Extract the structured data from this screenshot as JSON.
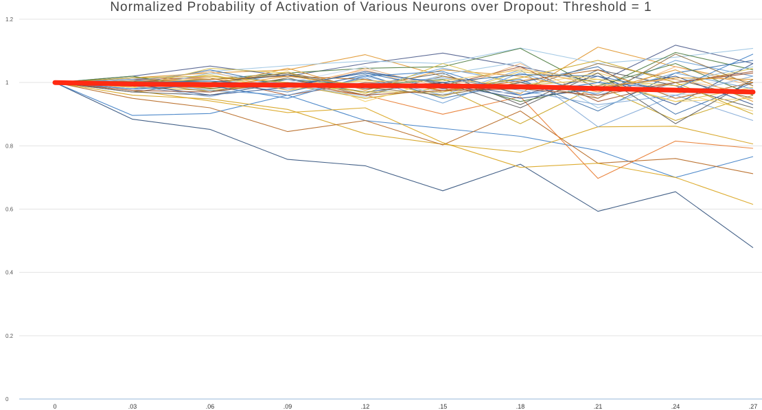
{
  "chart_data": {
    "type": "line",
    "title": "Normalized Probability of Activation of Various Neurons over Dropout: Threshold = 1",
    "xlabel": "",
    "ylabel": "",
    "ylim": [
      0,
      1.2
    ],
    "yticks": [
      "0",
      "0.2",
      "0.4",
      "0.6",
      "0.8",
      "1",
      "1.2"
    ],
    "categories": [
      "0",
      ".03",
      ".06",
      ".09",
      ".12",
      ".15",
      ".18",
      ".21",
      ".24",
      ".27"
    ],
    "grid": true,
    "legend": "none",
    "colors": {
      "average": "#ff2a12",
      "palette": [
        "#3b6fa8",
        "#e0952a",
        "#9bc4e2",
        "#c8a21c",
        "#5a5a5a",
        "#f0b47a",
        "#2f4f8a",
        "#b5651d",
        "#7fa7d6",
        "#d9c04a",
        "#8c6d3f",
        "#6a9fd4",
        "#f5d06b",
        "#4a7a3d",
        "#c9d9ee",
        "#a0522d"
      ]
    },
    "series": [
      {
        "values": [
          1,
          0.884,
          0.852,
          0.757,
          0.737,
          0.658,
          0.742,
          0.593,
          0.655,
          0.478
        ],
        "color": "#2f4f7a"
      },
      {
        "values": [
          1,
          0.896,
          0.902,
          0.96,
          0.88,
          0.855,
          0.83,
          0.785,
          0.7,
          0.766
        ],
        "color": "#3b7cc4"
      },
      {
        "values": [
          1,
          0.96,
          0.948,
          0.915,
          0.838,
          0.805,
          0.78,
          0.86,
          0.862,
          0.806
        ],
        "color": "#d4a017"
      },
      {
        "values": [
          1,
          0.95,
          0.92,
          0.845,
          0.88,
          0.803,
          0.91,
          0.745,
          0.76,
          0.712
        ],
        "color": "#b5651d"
      },
      {
        "values": [
          1,
          0.975,
          0.942,
          0.905,
          0.92,
          0.81,
          0.732,
          0.745,
          0.7,
          0.615
        ],
        "color": "#d9a31a"
      },
      {
        "values": [
          1,
          0.99,
          0.982,
          0.99,
          0.96,
          0.9,
          0.955,
          0.697,
          0.815,
          0.792
        ],
        "color": "#e8782a"
      },
      {
        "values": [
          1,
          1.015,
          1.03,
          1.04,
          1.088,
          1.02,
          0.965,
          1.112,
          1.05,
          1.0
        ],
        "color": "#e0952a"
      },
      {
        "values": [
          1,
          1.02,
          1.052,
          1.02,
          1.06,
          1.093,
          1.05,
          1.0,
          1.118,
          1.06
        ],
        "color": "#4a5a8a"
      },
      {
        "values": [
          1,
          1.005,
          1.035,
          1.053,
          1.068,
          1.06,
          1.109,
          1.06,
          1.08,
          1.108
        ],
        "color": "#9bc4e2"
      },
      {
        "values": [
          1,
          0.995,
          1.01,
          1.03,
          1.045,
          1.05,
          1.108,
          0.98,
          1.095,
          1.04
        ],
        "color": "#4a7a3d"
      },
      {
        "values": [
          1,
          0.985,
          0.975,
          0.995,
          0.95,
          0.985,
          0.87,
          0.99,
          0.88,
          0.96
        ],
        "color": "#c8a21c"
      },
      {
        "values": [
          1,
          1.01,
          1.0,
          0.98,
          1.02,
          0.96,
          1.04,
          0.86,
          0.96,
          0.88
        ],
        "color": "#7fa7d6"
      },
      {
        "values": [
          1,
          0.98,
          0.99,
          1.01,
          0.97,
          1.0,
          0.96,
          1.02,
          0.93,
          1.06
        ],
        "color": "#2f4f8a"
      },
      {
        "values": [
          1,
          1.0,
          1.02,
          0.99,
          1.04,
          0.97,
          1.06,
          0.95,
          1.05,
          0.99
        ],
        "color": "#f0b47a"
      },
      {
        "values": [
          1,
          0.97,
          0.96,
          1.0,
          0.99,
          1.03,
          0.93,
          1.04,
          0.99,
          0.92
        ],
        "color": "#5a5a5a"
      },
      {
        "values": [
          1,
          1.015,
          0.995,
          1.025,
          0.985,
          1.045,
          1.0,
          0.965,
          1.07,
          1.02
        ],
        "color": "#6a9fd4"
      },
      {
        "values": [
          1,
          0.99,
          1.025,
          0.975,
          1.01,
          0.955,
          1.035,
          1.0,
          0.94,
          0.985
        ],
        "color": "#d9c04a"
      },
      {
        "values": [
          1,
          1.005,
          0.97,
          1.015,
          0.96,
          1.02,
          0.98,
          1.06,
          1.01,
          0.95
        ],
        "color": "#8c6d3f"
      },
      {
        "values": [
          1,
          0.995,
          1.04,
          0.99,
          1.03,
          0.98,
          1.01,
          0.91,
          1.03,
          1.07
        ],
        "color": "#3b6fa8"
      },
      {
        "values": [
          1,
          0.985,
          0.985,
          1.035,
          0.94,
          1.01,
          0.99,
          1.03,
          0.97,
          0.91
        ],
        "color": "#f5d06b"
      },
      {
        "values": [
          1,
          1.01,
          1.015,
          0.96,
          1.0,
          0.99,
          1.05,
          0.94,
          1.0,
          1.03
        ],
        "color": "#a0522d"
      },
      {
        "values": [
          1,
          0.975,
          1.005,
          1.0,
          1.05,
          0.965,
          0.97,
          1.0,
          0.96,
          0.975
        ],
        "color": "#c9d9ee"
      },
      {
        "values": [
          1,
          1.0,
          0.99,
          1.045,
          0.975,
          1.04,
          1.02,
          0.97,
          1.04,
          0.94
        ],
        "color": "#e0952a"
      },
      {
        "values": [
          1,
          0.99,
          1.0,
          0.97,
          1.025,
          0.95,
          1.0,
          1.05,
          0.9,
          1.0
        ],
        "color": "#3b6fa8"
      },
      {
        "values": [
          1,
          1.02,
          0.98,
          1.01,
          0.99,
          1.01,
          0.94,
          0.99,
          1.06,
          0.96
        ],
        "color": "#4a7a3d"
      },
      {
        "values": [
          1,
          0.98,
          1.03,
          0.995,
          0.955,
          1.025,
          1.065,
          0.92,
          1.0,
          1.05
        ],
        "color": "#9bc4e2"
      },
      {
        "values": [
          1,
          1.005,
          1.01,
          1.02,
          1.01,
          0.975,
          1.005,
          1.04,
          0.95,
          1.0
        ],
        "color": "#b5651d"
      },
      {
        "values": [
          1,
          0.995,
          0.96,
          0.985,
          1.035,
          0.995,
          0.95,
          0.98,
          1.02,
          0.93
        ],
        "color": "#2f4f8a"
      },
      {
        "values": [
          1,
          0.985,
          1.045,
          1.03,
          0.965,
          1.06,
          0.99,
          1.01,
          0.99,
          1.045
        ],
        "color": "#d9c04a"
      },
      {
        "values": [
          1,
          1.01,
          0.975,
          0.96,
          1.015,
          0.935,
          1.03,
          0.96,
          1.03,
          0.98
        ],
        "color": "#6a9fd4"
      },
      {
        "values": [
          1,
          0.97,
          1.0,
          1.025,
          0.98,
          1.0,
          0.92,
          1.03,
          0.87,
          1.01
        ],
        "color": "#5a5a5a"
      },
      {
        "values": [
          1,
          1.0,
          1.035,
          0.975,
          1.045,
          0.985,
          1.045,
          0.99,
          1.01,
          0.965
        ],
        "color": "#f0b47a"
      },
      {
        "values": [
          1,
          0.99,
          0.955,
          1.01,
          0.995,
          1.015,
          0.975,
          0.93,
          0.96,
          1.02
        ],
        "color": "#7fa7d6"
      },
      {
        "values": [
          1,
          1.015,
          1.02,
          1.0,
          0.97,
          0.97,
          1.015,
          1.07,
          1.0,
          0.9
        ],
        "color": "#c8a21c"
      },
      {
        "values": [
          1,
          0.98,
          0.99,
          0.95,
          1.02,
          1.035,
          0.96,
          1.0,
          0.98,
          1.09
        ],
        "color": "#3b7cc4"
      },
      {
        "values": [
          1,
          1.005,
          1.0,
          1.03,
          0.985,
          0.96,
          1.0,
          0.95,
          1.09,
          0.99
        ],
        "color": "#8c6d3f"
      },
      {
        "values": [
          1,
          0.995,
          1.015,
          0.985,
          1.005,
          1.005,
          1.04,
          1.01,
          0.94,
          0.95
        ],
        "color": "#f5d06b"
      },
      {
        "values": [
          1,
          0.975,
          0.97,
          1.0,
          0.96,
          0.975,
          0.98,
          0.96,
          1.0,
          1.035
        ],
        "color": "#a0522d"
      },
      {
        "values": [
          1,
          1.0,
          1.005,
          0.99,
          1.03,
          1.0,
          1.025,
          1.02,
          0.97,
          0.97
        ],
        "color": "#3b6fa8"
      },
      {
        "values": [
          1,
          0.99,
          0.985,
          1.02,
          0.99,
          0.99,
          0.99,
          0.985,
          1.015,
          1.01
        ],
        "color": "#e0952a"
      }
    ],
    "average_series": {
      "values": [
        1,
        0.995,
        0.993,
        0.992,
        0.99,
        0.989,
        0.987,
        0.981,
        0.976,
        0.97
      ]
    }
  }
}
